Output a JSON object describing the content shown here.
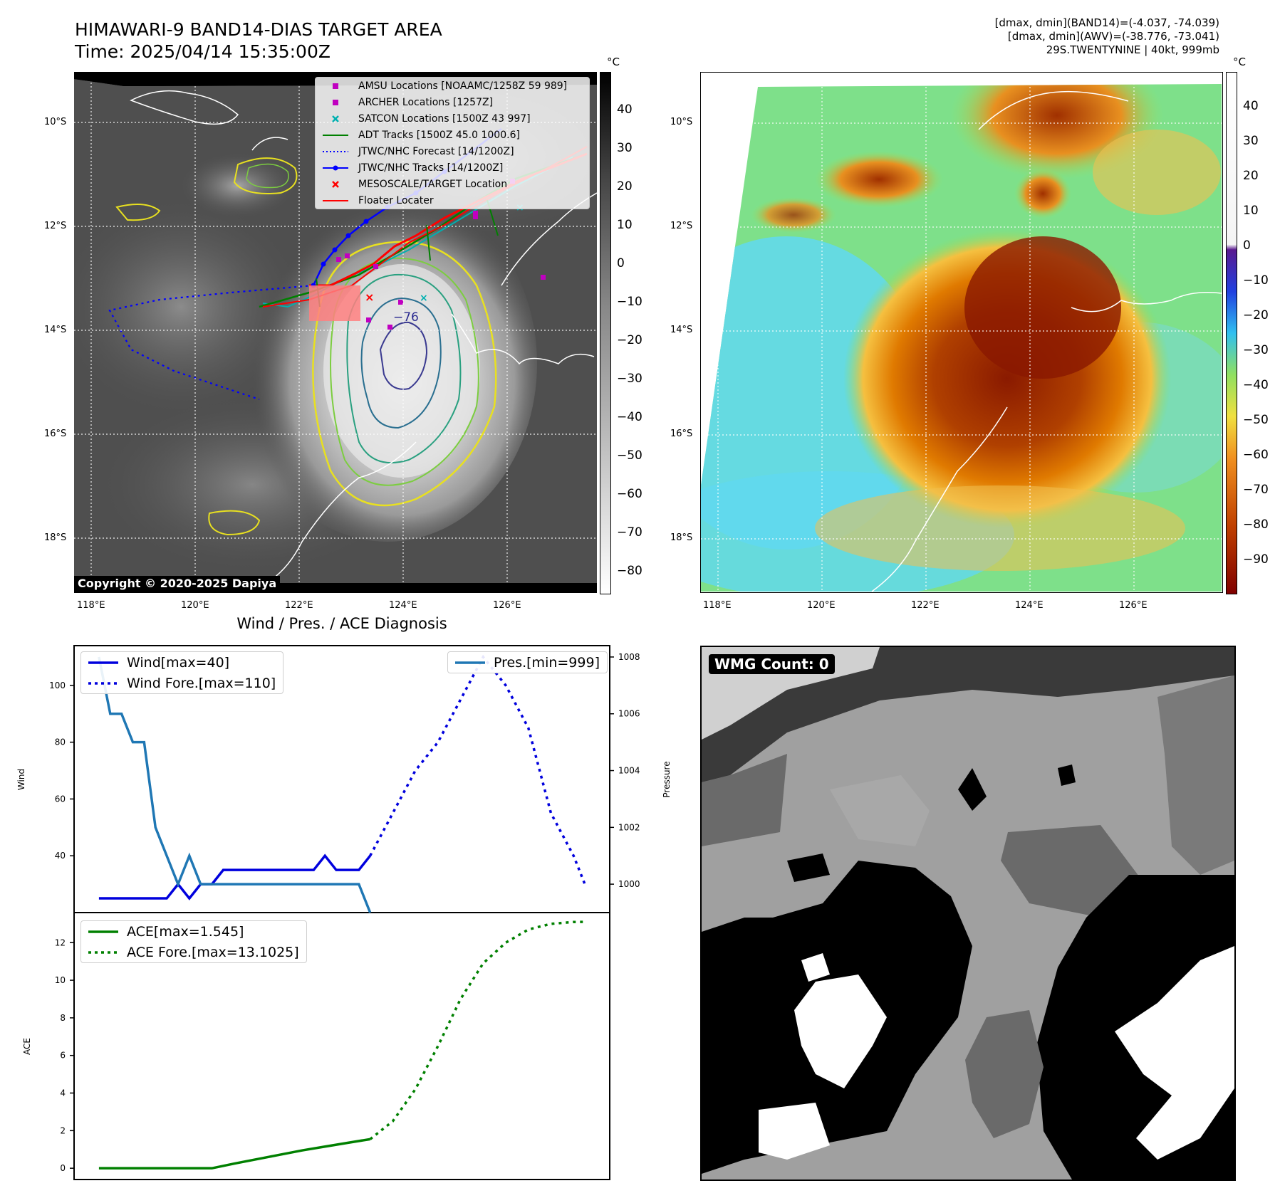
{
  "header": {
    "title_line1": "HIMAWARI-9 BAND14-DIAS TARGET AREA",
    "title_line2": "Time: 2025/04/14 15:35:00Z",
    "info_line1": "[dmax, dmin](BAND14)=(-4.037, -74.039)",
    "info_line2": "[dmax, dmin](AWV)=(-38.776, -73.041)",
    "info_line3": "29S.TWENTYNINE | 40kt, 999mb"
  },
  "ir_map": {
    "copyright": "Copyright © 2020-2025 Dapiya",
    "center_label": "−76",
    "lat_labels": [
      "10°S",
      "12°S",
      "14°S",
      "16°S",
      "18°S"
    ],
    "lon_labels": [
      "118°E",
      "120°E",
      "122°E",
      "124°E",
      "126°E"
    ],
    "colorbar_unit": "°C",
    "colorbar_ticks": [
      "40",
      "30",
      "20",
      "10",
      "0",
      "−10",
      "−20",
      "−30",
      "−40",
      "−50",
      "−60",
      "−70",
      "−80"
    ],
    "legend": [
      {
        "label": "AMSU Locations [NOAAMC/1258Z 59 989]",
        "marker": "square",
        "color": "#c000c0"
      },
      {
        "label": "ARCHER Locations [1257Z]",
        "marker": "square",
        "color": "#c000c0"
      },
      {
        "label": "SATCON Locations [1500Z 43 997]",
        "marker": "x",
        "color": "#00b0b0"
      },
      {
        "label": "ADT Tracks [1500Z 45.0 1000.6]",
        "marker": "line",
        "color": "#008000"
      },
      {
        "label": "JTWC/NHC Forecast [14/1200Z]",
        "marker": "dotted",
        "color": "#0000ff"
      },
      {
        "label": "JTWC/NHC Tracks [14/1200Z]",
        "marker": "line-dot",
        "color": "#0000ff"
      },
      {
        "label": "MESOSCALE/TARGET Location",
        "marker": "x",
        "color": "#ff0000"
      },
      {
        "label": "Floater Locater",
        "marker": "line",
        "color": "#ff0000"
      }
    ]
  },
  "awv_map": {
    "lat_labels": [
      "10°S",
      "12°S",
      "14°S",
      "16°S",
      "18°S"
    ],
    "lon_labels": [
      "118°E",
      "120°E",
      "122°E",
      "124°E",
      "126°E"
    ],
    "colorbar_unit": "°C",
    "colorbar_ticks": [
      "40",
      "30",
      "20",
      "10",
      "0",
      "−10",
      "−20",
      "−30",
      "−40",
      "−50",
      "−60",
      "−70",
      "−80",
      "−90"
    ]
  },
  "diag": {
    "title": "Wind / Pres. / ACE Diagnosis",
    "wind_axis_label": "Wind",
    "pres_axis_label": "Pressure",
    "ace_axis_label": "ACE",
    "wind_legend": [
      "Wind[max=40]",
      "Wind Fore.[max=110]"
    ],
    "pres_legend": [
      "Pres.[min=999]"
    ],
    "ace_legend": [
      "ACE[max=1.545]",
      "ACE Fore.[max=13.1025]"
    ]
  },
  "wmg": {
    "label": "WMG Count: 0"
  },
  "chart_data": [
    {
      "type": "line",
      "title": "",
      "ylabel": "Wind",
      "ylim": [
        20,
        114
      ],
      "yticks": [
        40,
        60,
        80,
        100
      ],
      "x": [
        0,
        1,
        2,
        3,
        4,
        5,
        6,
        7,
        8,
        9,
        10,
        11,
        12,
        13,
        14,
        15,
        16,
        17,
        18,
        19,
        20,
        21,
        22,
        23,
        24,
        25,
        26,
        27,
        28,
        29,
        30,
        31,
        32,
        33,
        34,
        35,
        36,
        37,
        38,
        39,
        40,
        41,
        42,
        43
      ],
      "series": [
        {
          "name": "Wind[max=40]",
          "color": "#0000dd",
          "style": "solid",
          "x": [
            0,
            1,
            2,
            3,
            4,
            5,
            6,
            7,
            8,
            9,
            10,
            11,
            12,
            13,
            14,
            15,
            16,
            17,
            18,
            19,
            20,
            21,
            22,
            23,
            24
          ],
          "values": [
            25,
            25,
            25,
            25,
            25,
            25,
            25,
            30,
            25,
            30,
            30,
            35,
            35,
            35,
            35,
            35,
            35,
            35,
            35,
            35,
            40,
            35,
            35,
            35,
            40
          ]
        },
        {
          "name": "Wind Fore.[max=110]",
          "color": "#0000dd",
          "style": "dotted",
          "x": [
            24,
            26,
            28,
            30,
            32,
            34,
            36,
            38,
            40,
            42,
            43
          ],
          "values": [
            40,
            55,
            70,
            80,
            95,
            110,
            100,
            85,
            55,
            40,
            30
          ]
        }
      ]
    },
    {
      "type": "line",
      "title": "",
      "ylabel": "Pressure",
      "ylim": [
        999,
        1008.4
      ],
      "yticks": [
        1000,
        1002,
        1004,
        1006,
        1008
      ],
      "x": [
        0,
        1,
        2,
        3,
        4,
        5,
        6,
        7,
        8,
        9,
        10,
        11,
        12,
        13,
        14,
        15,
        16,
        17,
        18,
        19,
        20,
        21,
        22,
        23,
        24,
        25,
        26,
        27,
        28,
        29,
        30,
        31,
        32,
        33,
        34,
        35,
        36,
        37,
        38,
        39,
        40,
        41,
        42,
        43
      ],
      "series": [
        {
          "name": "Pres.[min=999]",
          "color": "#1f77b4",
          "style": "solid",
          "x": [
            0,
            1,
            2,
            3,
            4,
            5,
            6,
            7,
            8,
            9,
            10,
            11,
            12,
            13,
            14,
            15,
            16,
            17,
            18,
            19,
            20,
            21,
            22,
            23,
            24
          ],
          "values": [
            1008,
            1006,
            1006,
            1005,
            1005,
            1002,
            1001,
            1000,
            1001,
            1000,
            1000,
            1000,
            1000,
            1000,
            1000,
            1000,
            1000,
            1000,
            1000,
            1000,
            1000,
            1000,
            1000,
            1000,
            999
          ]
        }
      ]
    },
    {
      "type": "line",
      "title": "",
      "ylabel": "ACE",
      "ylim": [
        -0.6,
        13.6
      ],
      "yticks": [
        0,
        2,
        4,
        6,
        8,
        10,
        12
      ],
      "x": [
        0,
        1,
        2,
        3,
        4,
        5,
        6,
        7,
        8,
        9,
        10,
        11,
        12,
        13,
        14,
        15,
        16,
        17,
        18,
        19,
        20,
        21,
        22,
        23,
        24,
        25,
        26,
        27,
        28,
        29,
        30,
        31,
        32,
        33,
        34,
        35,
        36,
        37,
        38,
        39,
        40,
        41,
        42,
        43
      ],
      "series": [
        {
          "name": "ACE[max=1.545]",
          "color": "#008000",
          "style": "solid",
          "x": [
            0,
            10,
            12,
            15,
            18,
            20,
            22,
            24
          ],
          "values": [
            0,
            0,
            0.25,
            0.6,
            0.95,
            1.15,
            1.35,
            1.545
          ]
        },
        {
          "name": "ACE Fore.[max=13.1025]",
          "color": "#008000",
          "style": "dotted",
          "x": [
            24,
            26,
            28,
            30,
            32,
            34,
            36,
            38,
            40,
            42,
            43
          ],
          "values": [
            1.545,
            2.5,
            4.2,
            6.5,
            9.0,
            10.9,
            12.0,
            12.7,
            13.0,
            13.1,
            13.1025
          ]
        }
      ]
    }
  ]
}
